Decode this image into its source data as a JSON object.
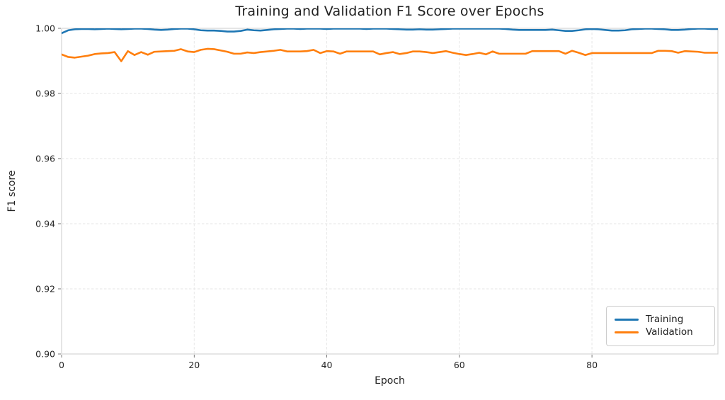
{
  "chart_data": {
    "type": "line",
    "title": "Training and Validation F1 Score over Epochs",
    "xlabel": "Epoch",
    "ylabel": "F1 score",
    "xlim": [
      0,
      99
    ],
    "ylim": [
      0.9,
      1.0
    ],
    "xticks": [
      0,
      20,
      40,
      60,
      80
    ],
    "xtick_labels": [
      "0",
      "20",
      "40",
      "60",
      "80"
    ],
    "yticks": [
      0.9,
      0.92,
      0.94,
      0.96,
      0.98,
      1.0
    ],
    "ytick_labels": [
      "0.90",
      "0.92",
      "0.94",
      "0.96",
      "0.98",
      "1.00"
    ],
    "grid": true,
    "grid_style": "dashed",
    "legend_position": "lower right",
    "x": [
      0,
      1,
      2,
      3,
      4,
      5,
      6,
      7,
      8,
      9,
      10,
      11,
      12,
      13,
      14,
      15,
      16,
      17,
      18,
      19,
      20,
      21,
      22,
      23,
      24,
      25,
      26,
      27,
      28,
      29,
      30,
      31,
      32,
      33,
      34,
      35,
      36,
      37,
      38,
      39,
      40,
      41,
      42,
      43,
      44,
      45,
      46,
      47,
      48,
      49,
      50,
      51,
      52,
      53,
      54,
      55,
      56,
      57,
      58,
      59,
      60,
      61,
      62,
      63,
      64,
      65,
      66,
      67,
      68,
      69,
      70,
      71,
      72,
      73,
      74,
      75,
      76,
      77,
      78,
      79,
      80,
      81,
      82,
      83,
      84,
      85,
      86,
      87,
      88,
      89,
      90,
      91,
      92,
      93,
      94,
      95,
      96,
      97,
      98,
      99
    ],
    "series": [
      {
        "name": "Training",
        "color": "#1f77b4",
        "values": [
          0.9985,
          0.9994,
          0.9997,
          0.9998,
          0.9998,
          0.9997,
          0.9998,
          0.9999,
          0.9998,
          0.9997,
          0.9998,
          0.9999,
          0.9999,
          0.9998,
          0.9996,
          0.9995,
          0.9996,
          0.9998,
          0.9999,
          0.9999,
          0.9997,
          0.9994,
          0.9993,
          0.9993,
          0.9992,
          0.999,
          0.999,
          0.9992,
          0.9996,
          0.9994,
          0.9993,
          0.9995,
          0.9997,
          0.9998,
          0.9999,
          0.9999,
          0.9998,
          0.9999,
          0.9999,
          0.9999,
          0.9998,
          0.9999,
          0.9999,
          0.9999,
          0.9999,
          0.9999,
          0.9998,
          0.9999,
          0.9999,
          0.9999,
          0.9998,
          0.9997,
          0.9996,
          0.9996,
          0.9997,
          0.9996,
          0.9996,
          0.9997,
          0.9998,
          0.9999,
          0.9999,
          0.9999,
          0.9999,
          0.9999,
          0.9999,
          0.9999,
          0.9999,
          0.9998,
          0.9996,
          0.9995,
          0.9995,
          0.9995,
          0.9995,
          0.9995,
          0.9996,
          0.9994,
          0.9992,
          0.9992,
          0.9994,
          0.9997,
          0.9998,
          0.9997,
          0.9995,
          0.9993,
          0.9993,
          0.9994,
          0.9997,
          0.9998,
          0.9999,
          0.9999,
          0.9998,
          0.9997,
          0.9995,
          0.9995,
          0.9996,
          0.9998,
          0.9999,
          0.9999,
          0.9998,
          0.9998
        ]
      },
      {
        "name": "Validation",
        "color": "#ff7f0e",
        "values": [
          0.992,
          0.9912,
          0.991,
          0.9913,
          0.9916,
          0.9921,
          0.9923,
          0.9924,
          0.9927,
          0.9899,
          0.993,
          0.9918,
          0.9927,
          0.9919,
          0.9928,
          0.9929,
          0.993,
          0.9931,
          0.9936,
          0.9929,
          0.9927,
          0.9934,
          0.9937,
          0.9936,
          0.9932,
          0.9928,
          0.9922,
          0.9922,
          0.9926,
          0.9924,
          0.9927,
          0.9929,
          0.9931,
          0.9934,
          0.9929,
          0.9929,
          0.9929,
          0.993,
          0.9934,
          0.9924,
          0.993,
          0.9929,
          0.9922,
          0.9929,
          0.9929,
          0.9929,
          0.9929,
          0.9929,
          0.992,
          0.9924,
          0.9927,
          0.9921,
          0.9924,
          0.9929,
          0.9929,
          0.9927,
          0.9924,
          0.9927,
          0.993,
          0.9925,
          0.9921,
          0.9918,
          0.9921,
          0.9925,
          0.992,
          0.9929,
          0.9922,
          0.9922,
          0.9922,
          0.9922,
          0.9922,
          0.993,
          0.993,
          0.993,
          0.993,
          0.993,
          0.9922,
          0.9931,
          0.9925,
          0.9918,
          0.9924,
          0.9924,
          0.9924,
          0.9924,
          0.9924,
          0.9924,
          0.9924,
          0.9924,
          0.9924,
          0.9924,
          0.9931,
          0.9931,
          0.993,
          0.9925,
          0.993,
          0.9929,
          0.9928,
          0.9925,
          0.9925,
          0.9925
        ]
      }
    ]
  },
  "style": {
    "grid_color": "#e6e6e6",
    "spine_color": "#d4d4d4",
    "tick_color": "#555555",
    "tick_label_color": "#262626",
    "background": "#ffffff"
  }
}
